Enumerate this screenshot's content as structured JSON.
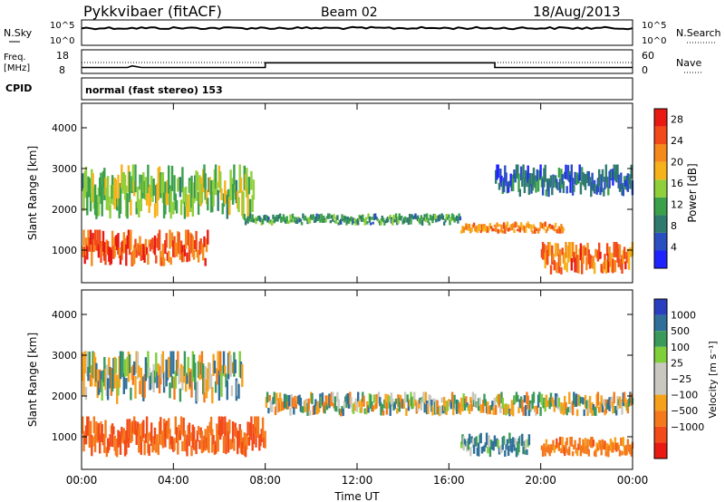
{
  "header": {
    "radar": "Pykkvibaer (fitACF)",
    "beam": "Beam 02",
    "date": "18/Aug/2013"
  },
  "panels": {
    "nsky": {
      "label": "N.Sky",
      "ticks_left": [
        "10^5",
        "10^0"
      ],
      "right_label": "N.Search",
      "ticks_right": [
        "10^5",
        "10^0"
      ]
    },
    "freq": {
      "label_top": "Freq.",
      "label_bottom": "[MHz]",
      "ticks_left": [
        "18",
        "8"
      ],
      "right_label": "Nave",
      "ticks_right": [
        "60",
        "0"
      ]
    },
    "cpid": {
      "label": "CPID",
      "text": "normal (fast stereo) 153"
    }
  },
  "colors": {
    "power_scale": [
      "#1f24ff",
      "#2a4fc0",
      "#2f7a6f",
      "#3aa04a",
      "#8fcf3a",
      "#f6b21a",
      "#f58a1a",
      "#f24a18",
      "#e81a12"
    ],
    "velocity_scale": [
      "#2a3fc0",
      "#2f6f9a",
      "#3a9a5a",
      "#7ecf3a",
      "#c8c8c0",
      "#c8c8c0",
      "#f6a11a",
      "#f5781a",
      "#f24a18",
      "#e81a12"
    ]
  },
  "chart_data": [
    {
      "type": "heatmap",
      "title": "",
      "ylabel": "Slant Range [km]",
      "xlabel": "",
      "x_ticks": [
        "00:00",
        "04:00",
        "08:00",
        "12:00",
        "16:00",
        "20:00",
        "00:00"
      ],
      "y_ticks": [
        "1000",
        "2000",
        "3000",
        "4000"
      ],
      "ylim": [
        200,
        4600
      ],
      "colorbar": {
        "label": "Power [dB]",
        "ticks": [
          "4",
          "8",
          "12",
          "16",
          "20",
          "24",
          "28"
        ],
        "range": [
          0,
          30
        ]
      },
      "bands": [
        {
          "start_h": 0.0,
          "end_h": 7.5,
          "range_km_start": 1750,
          "range_km_end": 3100,
          "db": 14
        },
        {
          "start_h": 0.0,
          "end_h": 5.5,
          "range_km_start": 600,
          "range_km_end": 1500,
          "db": 26
        },
        {
          "start_h": 7.0,
          "end_h": 16.5,
          "range_km_start": 1600,
          "range_km_end": 1900,
          "db": 10
        },
        {
          "start_h": 16.5,
          "end_h": 21.0,
          "range_km_start": 1400,
          "range_km_end": 1700,
          "db": 22
        },
        {
          "start_h": 18.0,
          "end_h": 24.0,
          "range_km_start": 2300,
          "range_km_end": 3100,
          "db": 6
        },
        {
          "start_h": 20.0,
          "end_h": 24.0,
          "range_km_start": 400,
          "range_km_end": 1200,
          "db": 24
        }
      ]
    },
    {
      "type": "heatmap",
      "title": "",
      "ylabel": "Slant Range [km]",
      "xlabel": "Time UT",
      "x_ticks": [
        "00:00",
        "04:00",
        "08:00",
        "12:00",
        "16:00",
        "20:00",
        "00:00"
      ],
      "y_ticks": [
        "1000",
        "2000",
        "3000",
        "4000"
      ],
      "ylim": [
        200,
        4600
      ],
      "colorbar": {
        "label": "Velocity [m s⁻¹]",
        "ticks": [
          "1000",
          "500",
          "100",
          "25",
          "−25",
          "−100",
          "−500",
          "−1000"
        ]
      },
      "bands": [
        {
          "start_h": 0.0,
          "end_h": 7.0,
          "range_km_start": 1800,
          "range_km_end": 3100,
          "v": 0
        },
        {
          "start_h": 0.0,
          "end_h": 8.0,
          "range_km_start": 500,
          "range_km_end": 1500,
          "v": -300
        },
        {
          "start_h": 8.0,
          "end_h": 24.0,
          "range_km_start": 1500,
          "range_km_end": 2100,
          "v": 0
        },
        {
          "start_h": 16.5,
          "end_h": 19.5,
          "range_km_start": 500,
          "range_km_end": 1100,
          "v": 150
        },
        {
          "start_h": 20.0,
          "end_h": 24.0,
          "range_km_start": 500,
          "range_km_end": 1000,
          "v": -200
        }
      ]
    }
  ]
}
